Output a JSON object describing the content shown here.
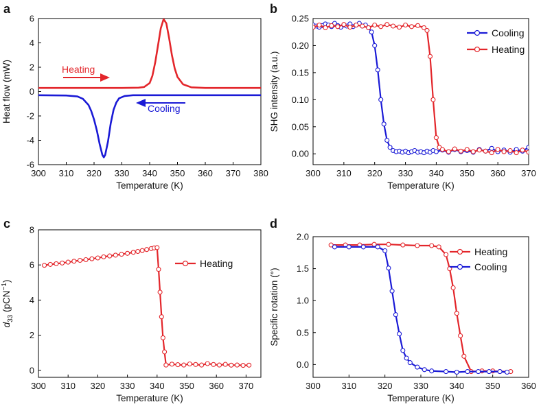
{
  "chart_data": [
    {
      "panel": "a",
      "type": "line",
      "xlabel": "Temperature (K)",
      "ylabel": "Heat flow (mW)",
      "xlim": [
        300,
        380
      ],
      "ylim": [
        -6,
        6
      ],
      "xticks": [
        300,
        310,
        320,
        330,
        340,
        350,
        360,
        370,
        380
      ],
      "yticks": [
        -6,
        -4,
        -2,
        0,
        2,
        4,
        6
      ],
      "annotations": [
        {
          "text": "Heating",
          "color": "#e3262b"
        },
        {
          "text": "Cooling",
          "color": "#1a1ad6"
        }
      ],
      "series": [
        {
          "name": "Heating",
          "color": "#e3262b",
          "points": [
            [
              300,
              0.3
            ],
            [
              330,
              0.3
            ],
            [
              336,
              0.32
            ],
            [
              338,
              0.38
            ],
            [
              340,
              0.7
            ],
            [
              341,
              1.3
            ],
            [
              342,
              2.4
            ],
            [
              343,
              3.8
            ],
            [
              344,
              5.2
            ],
            [
              345,
              5.95
            ],
            [
              346,
              5.6
            ],
            [
              347,
              4.4
            ],
            [
              348,
              3.0
            ],
            [
              349,
              1.9
            ],
            [
              350,
              1.2
            ],
            [
              352,
              0.6
            ],
            [
              355,
              0.35
            ],
            [
              360,
              0.3
            ],
            [
              380,
              0.3
            ]
          ]
        },
        {
          "name": "Cooling",
          "color": "#1a1ad6",
          "points": [
            [
              300,
              -0.3
            ],
            [
              310,
              -0.32
            ],
            [
              314,
              -0.4
            ],
            [
              316,
              -0.6
            ],
            [
              318,
              -1.1
            ],
            [
              319,
              -1.6
            ],
            [
              320,
              -2.3
            ],
            [
              321,
              -3.2
            ],
            [
              322,
              -4.3
            ],
            [
              323,
              -5.2
            ],
            [
              323.5,
              -5.4
            ],
            [
              324,
              -5.2
            ],
            [
              325,
              -4.1
            ],
            [
              326,
              -2.6
            ],
            [
              327,
              -1.5
            ],
            [
              328,
              -0.9
            ],
            [
              329,
              -0.55
            ],
            [
              331,
              -0.36
            ],
            [
              334,
              -0.3
            ],
            [
              380,
              -0.3
            ]
          ]
        }
      ]
    },
    {
      "panel": "b",
      "type": "line",
      "xlabel": "Temperature (K)",
      "ylabel": "SHG intensity (a.u.)",
      "xlim": [
        300,
        370
      ],
      "ylim": [
        -0.02,
        0.25
      ],
      "xticks": [
        300,
        310,
        320,
        330,
        340,
        350,
        360,
        370
      ],
      "yticks": [
        0.0,
        0.05,
        0.1,
        0.15,
        0.2,
        0.25
      ],
      "ytick_labels": [
        "0.00",
        "0.05",
        "0.10",
        "0.15",
        "0.20",
        "0.25"
      ],
      "legend": "top-right",
      "series": [
        {
          "name": "Cooling",
          "color": "#1a1ad6",
          "points": [
            [
              300,
              0.238
            ],
            [
              301,
              0.236
            ],
            [
              302,
              0.234
            ],
            [
              303,
              0.237
            ],
            [
              304,
              0.24
            ],
            [
              305,
              0.238
            ],
            [
              306,
              0.235
            ],
            [
              307,
              0.241
            ],
            [
              308,
              0.237
            ],
            [
              309,
              0.234
            ],
            [
              310,
              0.238
            ],
            [
              311,
              0.236
            ],
            [
              312,
              0.24
            ],
            [
              313,
              0.235
            ],
            [
              314,
              0.238
            ],
            [
              315,
              0.241
            ],
            [
              316,
              0.236
            ],
            [
              317,
              0.238
            ],
            [
              318,
              0.233
            ],
            [
              319,
              0.225
            ],
            [
              320,
              0.2
            ],
            [
              321,
              0.155
            ],
            [
              322,
              0.1
            ],
            [
              323,
              0.055
            ],
            [
              324,
              0.025
            ],
            [
              325,
              0.012
            ],
            [
              326,
              0.006
            ],
            [
              327,
              0.004
            ],
            [
              328,
              0.005
            ],
            [
              329,
              0.003
            ],
            [
              330,
              0.005
            ],
            [
              331,
              0.002
            ],
            [
              332,
              0.004
            ],
            [
              333,
              0.006
            ],
            [
              334,
              0.003
            ],
            [
              335,
              0.004
            ],
            [
              336,
              0.002
            ],
            [
              337,
              0.005
            ],
            [
              338,
              0.003
            ],
            [
              339,
              0.006
            ],
            [
              340,
              0.004
            ],
            [
              342,
              0.007
            ],
            [
              344,
              0.003
            ],
            [
              346,
              0.008
            ],
            [
              348,
              0.004
            ],
            [
              350,
              0.006
            ],
            [
              352,
              0.003
            ],
            [
              354,
              0.008
            ],
            [
              356,
              0.005
            ],
            [
              358,
              0.01
            ],
            [
              360,
              0.004
            ],
            [
              362,
              0.007
            ],
            [
              364,
              0.003
            ],
            [
              366,
              0.008
            ],
            [
              368,
              0.005
            ],
            [
              370,
              0.012
            ]
          ]
        },
        {
          "name": "Heating",
          "color": "#e3262b",
          "points": [
            [
              300,
              0.234
            ],
            [
              302,
              0.238
            ],
            [
              304,
              0.233
            ],
            [
              306,
              0.237
            ],
            [
              308,
              0.235
            ],
            [
              310,
              0.239
            ],
            [
              312,
              0.234
            ],
            [
              314,
              0.238
            ],
            [
              316,
              0.236
            ],
            [
              318,
              0.233
            ],
            [
              320,
              0.238
            ],
            [
              322,
              0.235
            ],
            [
              324,
              0.239
            ],
            [
              326,
              0.236
            ],
            [
              328,
              0.234
            ],
            [
              330,
              0.238
            ],
            [
              332,
              0.235
            ],
            [
              334,
              0.237
            ],
            [
              336,
              0.233
            ],
            [
              337,
              0.228
            ],
            [
              338,
              0.18
            ],
            [
              339,
              0.1
            ],
            [
              340,
              0.03
            ],
            [
              341,
              0.012
            ],
            [
              342,
              0.008
            ],
            [
              344,
              0.004
            ],
            [
              346,
              0.009
            ],
            [
              348,
              0.005
            ],
            [
              350,
              0.008
            ],
            [
              352,
              0.004
            ],
            [
              354,
              0.007
            ],
            [
              356,
              0.005
            ],
            [
              358,
              0.002
            ],
            [
              360,
              0.008
            ],
            [
              362,
              0.004
            ],
            [
              364,
              0.006
            ],
            [
              366,
              0.002
            ],
            [
              368,
              0.007
            ],
            [
              370,
              0.003
            ]
          ]
        }
      ]
    },
    {
      "panel": "c",
      "type": "line",
      "xlabel": "Temperature (K)",
      "ylabel": "d33 (pCN−1)",
      "ylabel_parts": [
        "d",
        "33",
        " (pCN",
        "−1",
        ")"
      ],
      "xlim": [
        300,
        375
      ],
      "ylim": [
        -0.4,
        8
      ],
      "xticks": [
        300,
        310,
        320,
        330,
        340,
        350,
        360,
        370
      ],
      "yticks": [
        0,
        2,
        4,
        6,
        8
      ],
      "legend": "top-right",
      "series": [
        {
          "name": "Heating",
          "color": "#e3262b",
          "points": [
            [
              302,
              5.98
            ],
            [
              304,
              6.03
            ],
            [
              306,
              6.07
            ],
            [
              308,
              6.11
            ],
            [
              310,
              6.16
            ],
            [
              312,
              6.21
            ],
            [
              314,
              6.26
            ],
            [
              316,
              6.3
            ],
            [
              318,
              6.35
            ],
            [
              320,
              6.4
            ],
            [
              322,
              6.46
            ],
            [
              324,
              6.51
            ],
            [
              326,
              6.56
            ],
            [
              328,
              6.61
            ],
            [
              330,
              6.66
            ],
            [
              332,
              6.72
            ],
            [
              333.5,
              6.77
            ],
            [
              335,
              6.82
            ],
            [
              336.5,
              6.88
            ],
            [
              338,
              6.93
            ],
            [
              339,
              6.97
            ],
            [
              340,
              6.99
            ],
            [
              340.5,
              5.75
            ],
            [
              341,
              4.45
            ],
            [
              341.5,
              3.05
            ],
            [
              342,
              1.85
            ],
            [
              342.5,
              1.05
            ],
            [
              343,
              0.3
            ],
            [
              345,
              0.35
            ],
            [
              347,
              0.32
            ],
            [
              349,
              0.3
            ],
            [
              351,
              0.36
            ],
            [
              353,
              0.33
            ],
            [
              355,
              0.3
            ],
            [
              357,
              0.38
            ],
            [
              359,
              0.33
            ],
            [
              361,
              0.3
            ],
            [
              363,
              0.34
            ],
            [
              365,
              0.29
            ],
            [
              367,
              0.3
            ],
            [
              369,
              0.28
            ],
            [
              371,
              0.29
            ]
          ]
        }
      ]
    },
    {
      "panel": "d",
      "type": "line",
      "xlabel": "Temperature (K)",
      "ylabel": "Specific rotation (°)",
      "xlim": [
        300,
        360
      ],
      "ylim": [
        -0.2,
        2.0
      ],
      "xticks": [
        300,
        310,
        320,
        330,
        340,
        350,
        360
      ],
      "yticks": [
        0.0,
        0.5,
        1.0,
        1.5,
        2.0
      ],
      "ytick_labels": [
        "0.0",
        "0.5",
        "1.0",
        "1.5",
        "2.0"
      ],
      "legend": "top-right",
      "series": [
        {
          "name": "Heating",
          "color": "#e3262b",
          "points": [
            [
              305,
              1.87
            ],
            [
              309,
              1.87
            ],
            [
              313,
              1.87
            ],
            [
              317,
              1.88
            ],
            [
              321,
              1.88
            ],
            [
              325,
              1.87
            ],
            [
              329,
              1.86
            ],
            [
              333,
              1.86
            ],
            [
              335,
              1.84
            ],
            [
              337,
              1.72
            ],
            [
              338,
              1.5
            ],
            [
              339,
              1.2
            ],
            [
              340,
              0.8
            ],
            [
              341,
              0.45
            ],
            [
              342,
              0.13
            ],
            [
              344,
              -0.11
            ],
            [
              347,
              -0.1
            ],
            [
              350,
              -0.1
            ],
            [
              352,
              -0.11
            ],
            [
              355,
              -0.11
            ]
          ]
        },
        {
          "name": "Cooling",
          "color": "#1a1ad6",
          "points": [
            [
              306,
              1.84
            ],
            [
              310,
              1.84
            ],
            [
              314,
              1.84
            ],
            [
              318,
              1.84
            ],
            [
              320,
              1.78
            ],
            [
              321,
              1.51
            ],
            [
              322,
              1.15
            ],
            [
              323,
              0.78
            ],
            [
              324,
              0.48
            ],
            [
              325,
              0.22
            ],
            [
              326,
              0.1
            ],
            [
              327,
              0.03
            ],
            [
              329,
              -0.04
            ],
            [
              331,
              -0.08
            ],
            [
              333,
              -0.1
            ],
            [
              337,
              -0.11
            ],
            [
              340,
              -0.12
            ],
            [
              343,
              -0.11
            ],
            [
              346,
              -0.11
            ],
            [
              349,
              -0.11
            ],
            [
              352,
              -0.11
            ],
            [
              354,
              -0.12
            ]
          ]
        }
      ]
    }
  ]
}
